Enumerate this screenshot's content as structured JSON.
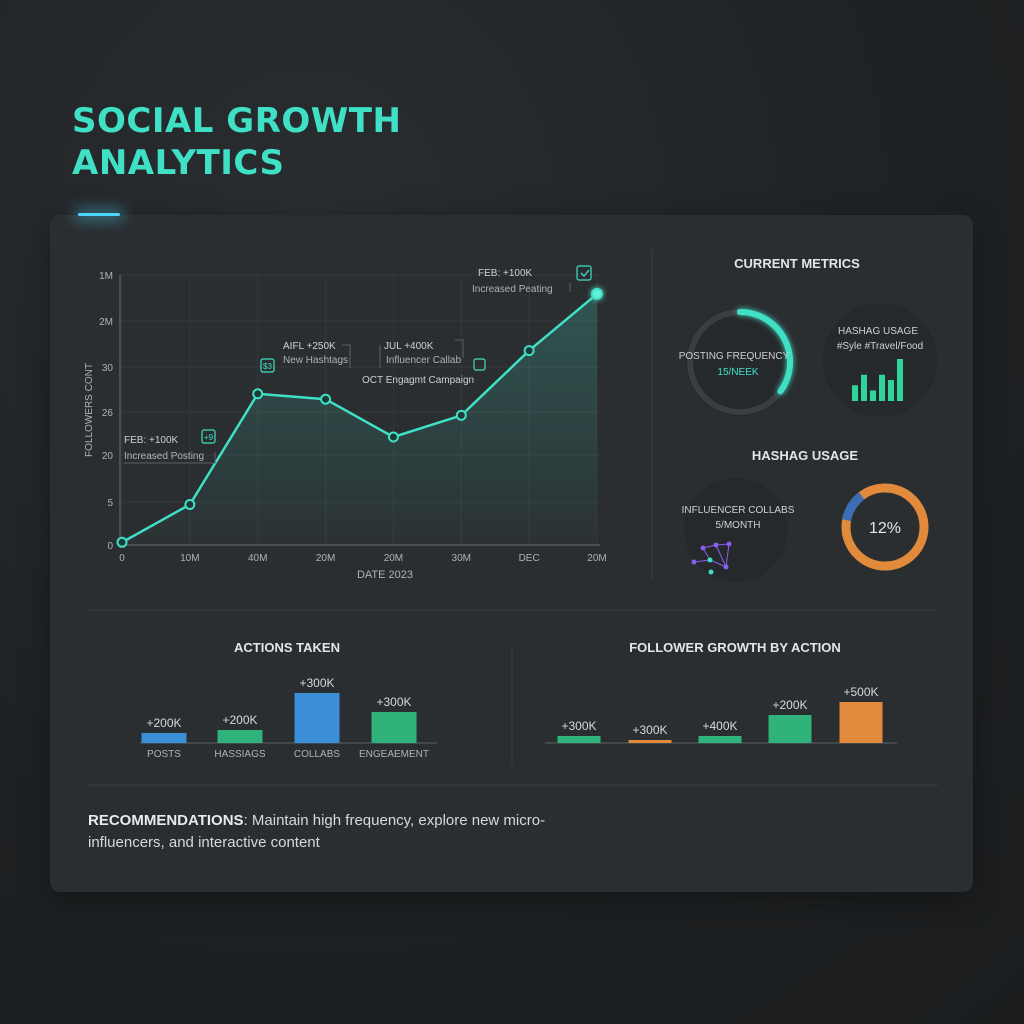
{
  "title": {
    "line1": "SOCIAL GROWTH",
    "line2": "ANALYTICS"
  },
  "colors": {
    "accent": "#3fe0c5",
    "blue": "#3a8fd6",
    "green": "#2fb37a",
    "orange": "#e28a3c",
    "purple": "#8a5cf0"
  },
  "chart_data": [
    {
      "type": "line",
      "title": "",
      "xlabel": "DATE 2023",
      "ylabel": "FOLLOWERS CONT",
      "x_ticks": [
        "0",
        "10M",
        "40M",
        "20M",
        "20M",
        "30M",
        "DEC",
        "20M"
      ],
      "y_ticks": [
        "0",
        "5",
        "20",
        "26",
        "30",
        "2M",
        "1M"
      ],
      "ylim": [
        0,
        100
      ],
      "series": [
        {
          "values": [
            1,
            15,
            56,
            54,
            40,
            48,
            72,
            93
          ]
        }
      ],
      "annotations": [
        {
          "label": "FEB: +100K",
          "detail": "Increased Posting",
          "icon": "+9"
        },
        {
          "label": "AIFL +250K",
          "detail": "New Hashtags",
          "icon": "$3"
        },
        {
          "label": "JUL +400K",
          "detail": "Influencer Callab",
          "icon": ""
        },
        {
          "label": "OCT Engagmt Campaign",
          "detail": "",
          "icon": ""
        },
        {
          "label": "FEB: +100K",
          "detail": "Increased Peating",
          "icon": "check"
        }
      ],
      "grid": true
    },
    {
      "type": "bar",
      "title": "ACTIONS TAKEN",
      "categories": [
        "POSTS",
        "HASSIAGS",
        "COLLABS",
        "ENGEAEMENT"
      ],
      "labels": [
        "+200K",
        "+200K",
        "+300K",
        "+300K"
      ],
      "values": [
        200,
        200,
        300,
        300
      ],
      "bar_colors": [
        "#3a8fd6",
        "#2fb37a",
        "#3a8fd6",
        "#2fb37a"
      ]
    },
    {
      "type": "bar",
      "title": "FOLLOWER GROWTH BY ACTION",
      "labels": [
        "+300K",
        "+300K",
        "+400K",
        "+200K",
        "+500K"
      ],
      "values": [
        300,
        300,
        400,
        200,
        500
      ],
      "bar_colors": [
        "#2fb37a",
        "#e28a3c",
        "#2fb37a",
        "#2fb37a",
        "#e28a3c"
      ]
    }
  ],
  "metrics": {
    "title": "CURRENT METRICS",
    "posting": {
      "label": "POSTING FREQUENCY",
      "value": "15/NEEK",
      "fraction": 0.35
    },
    "hashtag": {
      "label": "HASHAG USAGE",
      "tags": "#Syle #Travel/Food",
      "bars": [
        3,
        5,
        2,
        5,
        4,
        8
      ]
    },
    "section2_title": "HASHAG USAGE",
    "influencer": {
      "label": "INFLUENCER COLLABS",
      "value": "5/MONTH",
      "icon": "network-icon"
    },
    "donut": {
      "value_label": "12%",
      "fraction": 0.12
    }
  },
  "recommendations": {
    "heading": "RECOMMENDATIONS",
    "text": ": Maintain high frequency, explore new micro-influencers, and interactive content"
  }
}
